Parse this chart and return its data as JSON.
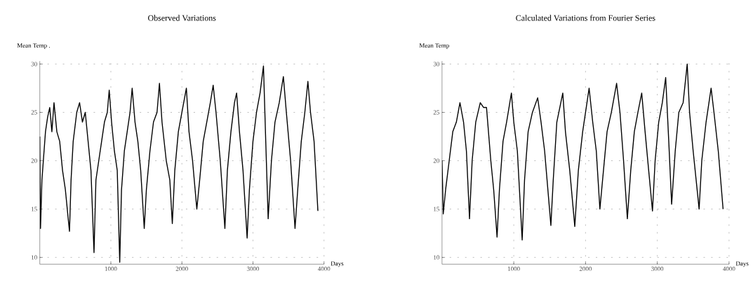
{
  "chart_data": [
    {
      "type": "line",
      "title": "Observed Variations",
      "xlabel": "Days",
      "ylabel": "Mean Temp .",
      "xlim": [
        0,
        4000
      ],
      "ylim": [
        9.3,
        30.3
      ],
      "xticks": [
        1000,
        2000,
        3000,
        4000
      ],
      "yticks": [
        10,
        15,
        20,
        25,
        30
      ],
      "grid": true,
      "x": [
        0,
        10,
        30,
        50,
        80,
        110,
        140,
        170,
        200,
        240,
        280,
        320,
        360,
        400,
        418,
        440,
        470,
        520,
        560,
        600,
        640,
        680,
        720,
        763,
        790,
        830,
        870,
        910,
        950,
        977,
        1010,
        1050,
        1090,
        1125,
        1150,
        1190,
        1230,
        1270,
        1300,
        1340,
        1380,
        1420,
        1470,
        1500,
        1550,
        1600,
        1650,
        1684,
        1720,
        1780,
        1830,
        1865,
        1900,
        1950,
        2000,
        2063,
        2100,
        2150,
        2210,
        2250,
        2300,
        2350,
        2400,
        2440,
        2480,
        2540,
        2605,
        2640,
        2690,
        2740,
        2770,
        2810,
        2860,
        2918,
        2950,
        3000,
        3050,
        3100,
        3148,
        3180,
        3214,
        3260,
        3310,
        3370,
        3428,
        3470,
        3530,
        3592,
        3630,
        3680,
        3730,
        3773,
        3810,
        3860,
        3914
      ],
      "series": [
        {
          "color": "#000000",
          "values": [
            22.5,
            13,
            18,
            20,
            23,
            24.5,
            25.5,
            23,
            26,
            23,
            22,
            19,
            17,
            14,
            12.7,
            18,
            22,
            25,
            26,
            24,
            25,
            22,
            19,
            10.5,
            18,
            20,
            22,
            24,
            25,
            27.3,
            24,
            21,
            19,
            9.5,
            17,
            21,
            23,
            25,
            27.5,
            24,
            22,
            19,
            13,
            17,
            21,
            24,
            25,
            28,
            24,
            20,
            18,
            13.5,
            19,
            23,
            25,
            27.5,
            23,
            20,
            15,
            18,
            22,
            24,
            26,
            27.8,
            25,
            20,
            13,
            19,
            23,
            26,
            27,
            23,
            19,
            12,
            17,
            22,
            25,
            27,
            29.8,
            22,
            14,
            20,
            24,
            26,
            28.7,
            25,
            20,
            13,
            17,
            22,
            25,
            28.2,
            25,
            22,
            14.8
          ]
        }
      ]
    },
    {
      "type": "line",
      "title": "Calculated Variations from Fourier Series",
      "xlabel": "Days",
      "ylabel": "Mean Temp",
      "xlim": [
        0,
        4000
      ],
      "ylim": [
        9.3,
        30.3
      ],
      "xticks": [
        1000,
        2000,
        3000,
        4000
      ],
      "yticks": [
        10,
        15,
        20,
        25,
        30
      ],
      "grid": true,
      "x": [
        0,
        17,
        50,
        100,
        150,
        200,
        250,
        300,
        340,
        383,
        420,
        470,
        533,
        580,
        620,
        680,
        720,
        767,
        800,
        850,
        900,
        967,
        1000,
        1050,
        1117,
        1150,
        1200,
        1260,
        1333,
        1380,
        1430,
        1517,
        1550,
        1600,
        1683,
        1720,
        1780,
        1850,
        1900,
        1960,
        2050,
        2100,
        2150,
        2200,
        2250,
        2300,
        2360,
        2433,
        2480,
        2530,
        2583,
        2630,
        2680,
        2730,
        2783,
        2830,
        2880,
        2933,
        2970,
        3020,
        3070,
        3117,
        3160,
        3200,
        3250,
        3300,
        3360,
        3417,
        3450,
        3500,
        3583,
        3620,
        3680,
        3750,
        3790,
        3850,
        3917
      ],
      "series": [
        {
          "color": "#000000",
          "values": [
            20,
            14.5,
            17,
            20,
            23,
            24,
            26,
            24,
            21,
            14,
            20,
            24,
            26,
            25.5,
            25.5,
            20,
            17,
            12.1,
            17,
            22,
            24,
            27,
            24,
            21,
            11.8,
            18,
            23,
            25,
            26.5,
            24,
            21,
            13.3,
            18,
            24,
            27,
            23,
            19,
            13.2,
            19,
            23,
            27.5,
            24,
            21,
            15,
            19,
            23,
            25,
            28,
            25,
            20,
            14,
            19,
            23,
            25,
            27,
            23,
            19,
            14.8,
            20,
            24,
            26,
            28.6,
            22,
            15.5,
            21,
            25,
            26,
            30,
            25,
            21,
            15,
            20,
            24,
            27.5,
            25,
            21,
            15
          ]
        }
      ]
    }
  ]
}
